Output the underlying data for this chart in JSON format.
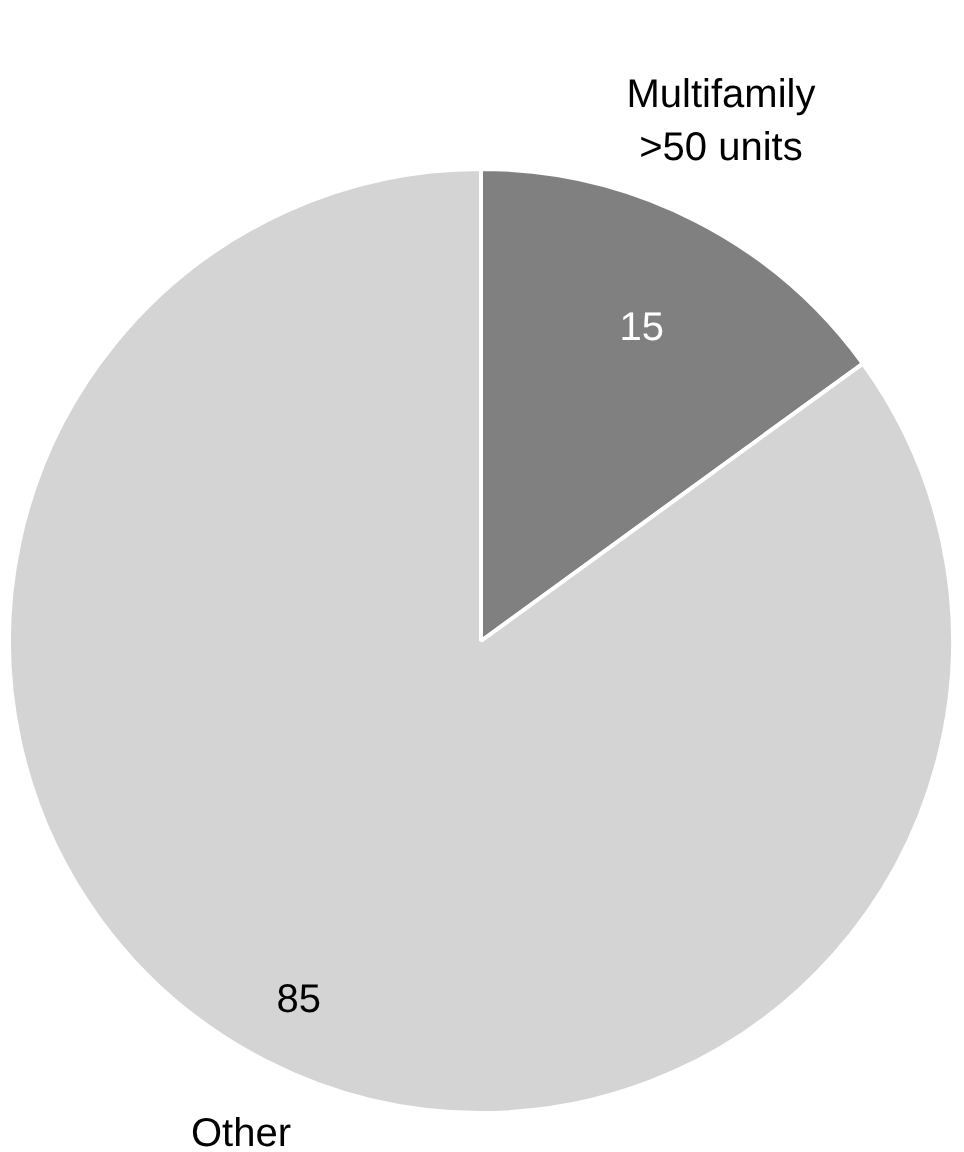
{
  "chart_data": {
    "type": "pie",
    "categories": [
      "Multifamily\n>50 units",
      "Other"
    ],
    "values": [
      15,
      85
    ],
    "colors": [
      "#808080",
      "#d4d4d4"
    ],
    "data_labels": true
  }
}
